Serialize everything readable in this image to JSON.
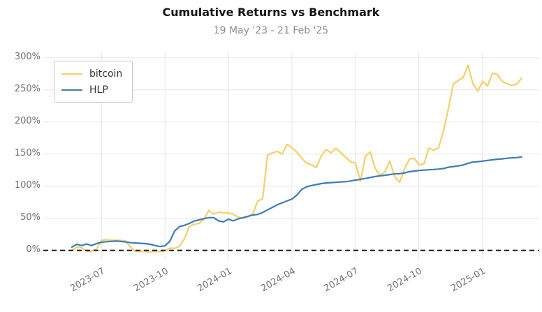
{
  "chart_data": {
    "type": "line",
    "title": "Cumulative Returns vs Benchmark",
    "subtitle": "19 May '23 - 21 Feb '25",
    "grid": true,
    "legend_position": "upper-left",
    "background_color": "#ffffff",
    "gridline_color": "#e7e7e7",
    "zero_line": {
      "value": 0,
      "style": "dashed",
      "color": "#141414"
    },
    "ylim": [
      -15,
      308
    ],
    "y_ticks": [
      {
        "label": "0%",
        "value": 0
      },
      {
        "label": "50%",
        "value": 50
      },
      {
        "label": "100%",
        "value": 100
      },
      {
        "label": "150%",
        "value": 150
      },
      {
        "label": "200%",
        "value": 200
      },
      {
        "label": "250%",
        "value": 250
      },
      {
        "label": "300%",
        "value": 300
      }
    ],
    "x_ticks": [
      {
        "label": "2023-07",
        "t": 0.066
      },
      {
        "label": "2023-10",
        "t": 0.207
      },
      {
        "label": "2024-01",
        "t": 0.348
      },
      {
        "label": "2024-04",
        "t": 0.489
      },
      {
        "label": "2024-07",
        "t": 0.63
      },
      {
        "label": "2024-10",
        "t": 0.771
      },
      {
        "label": "2025-01",
        "t": 0.912
      }
    ],
    "dates": [
      "2023-05-19",
      "2023-05-26",
      "2023-06-02",
      "2023-06-09",
      "2023-06-16",
      "2023-06-23",
      "2023-06-30",
      "2023-07-07",
      "2023-07-14",
      "2023-07-21",
      "2023-07-28",
      "2023-08-04",
      "2023-08-11",
      "2023-08-18",
      "2023-08-25",
      "2023-09-01",
      "2023-09-08",
      "2023-09-15",
      "2023-09-22",
      "2023-09-29",
      "2023-10-06",
      "2023-10-13",
      "2023-10-20",
      "2023-10-27",
      "2023-11-03",
      "2023-11-10",
      "2023-11-17",
      "2023-11-24",
      "2023-12-01",
      "2023-12-08",
      "2023-12-15",
      "2023-12-22",
      "2023-12-29",
      "2024-01-05",
      "2024-01-12",
      "2024-01-19",
      "2024-01-26",
      "2024-02-02",
      "2024-02-09",
      "2024-02-16",
      "2024-02-23",
      "2024-03-01",
      "2024-03-08",
      "2024-03-15",
      "2024-03-22",
      "2024-03-29",
      "2024-04-05",
      "2024-04-12",
      "2024-04-19",
      "2024-04-26",
      "2024-05-03",
      "2024-05-10",
      "2024-05-17",
      "2024-05-24",
      "2024-05-31",
      "2024-06-07",
      "2024-06-14",
      "2024-06-21",
      "2024-06-28",
      "2024-07-05",
      "2024-07-12",
      "2024-07-19",
      "2024-07-26",
      "2024-08-02",
      "2024-08-09",
      "2024-08-16",
      "2024-08-23",
      "2024-08-30",
      "2024-09-06",
      "2024-09-13",
      "2024-09-20",
      "2024-09-27",
      "2024-10-04",
      "2024-10-11",
      "2024-10-18",
      "2024-10-25",
      "2024-11-01",
      "2024-11-08",
      "2024-11-15",
      "2024-11-22",
      "2024-11-29",
      "2024-12-06",
      "2024-12-13",
      "2024-12-20",
      "2024-12-27",
      "2025-01-03",
      "2025-01-10",
      "2025-01-17",
      "2025-01-24",
      "2025-01-31",
      "2025-02-07",
      "2025-02-14",
      "2025-02-21"
    ],
    "series": [
      {
        "name": "bitcoin",
        "color": "#f3d06a",
        "values": [
          0,
          5,
          4,
          -1,
          -1.5,
          2,
          15.5,
          16.5,
          15.5,
          16,
          15.5,
          14.5,
          5,
          -2,
          -1.5,
          -2,
          -2.5,
          -1.5,
          -2,
          -1,
          3.5,
          3,
          6.5,
          18,
          37,
          40.5,
          42,
          48,
          62.5,
          56.5,
          59.5,
          58.5,
          58.5,
          56,
          52,
          50,
          52.5,
          57,
          77,
          80,
          148,
          152,
          154,
          150,
          165,
          160,
          153,
          143,
          136,
          133.5,
          129,
          147,
          157,
          152,
          159,
          152,
          145,
          137.5,
          136,
          107.5,
          146,
          153.5,
          128,
          116.5,
          122,
          139,
          115,
          106,
          126,
          142,
          143.5,
          133,
          135,
          159,
          156,
          160,
          186,
          221,
          259,
          264.5,
          269,
          288,
          260,
          248,
          263,
          256,
          276,
          274,
          263,
          259.5,
          257,
          259,
          268.5
        ]
      },
      {
        "name": "HLP",
        "color": "#3e7bb6",
        "values": [
          5,
          9.5,
          7.5,
          10,
          7.5,
          10.5,
          12.5,
          13.5,
          14,
          14.5,
          14,
          13,
          12,
          11.5,
          11,
          10.5,
          9.5,
          7.5,
          6,
          7,
          14,
          30,
          37,
          39,
          42,
          45.5,
          47.5,
          49.5,
          51,
          51,
          46,
          44.5,
          48.5,
          46,
          49,
          51,
          53,
          55,
          56,
          59,
          63,
          67,
          71,
          74,
          77,
          80,
          86,
          95,
          99,
          101,
          102.5,
          104,
          105,
          105.5,
          106,
          106.5,
          107,
          108,
          109.5,
          110.5,
          112,
          113.5,
          115,
          116,
          117,
          118,
          119,
          119.5,
          120.5,
          122.5,
          123.5,
          124.5,
          125,
          125.5,
          126,
          126.5,
          127.5,
          129.5,
          130.5,
          131.5,
          133,
          135.5,
          137.5,
          138,
          139,
          140,
          141,
          142,
          142.5,
          143.5,
          144,
          144.5,
          145.5
        ]
      }
    ]
  }
}
